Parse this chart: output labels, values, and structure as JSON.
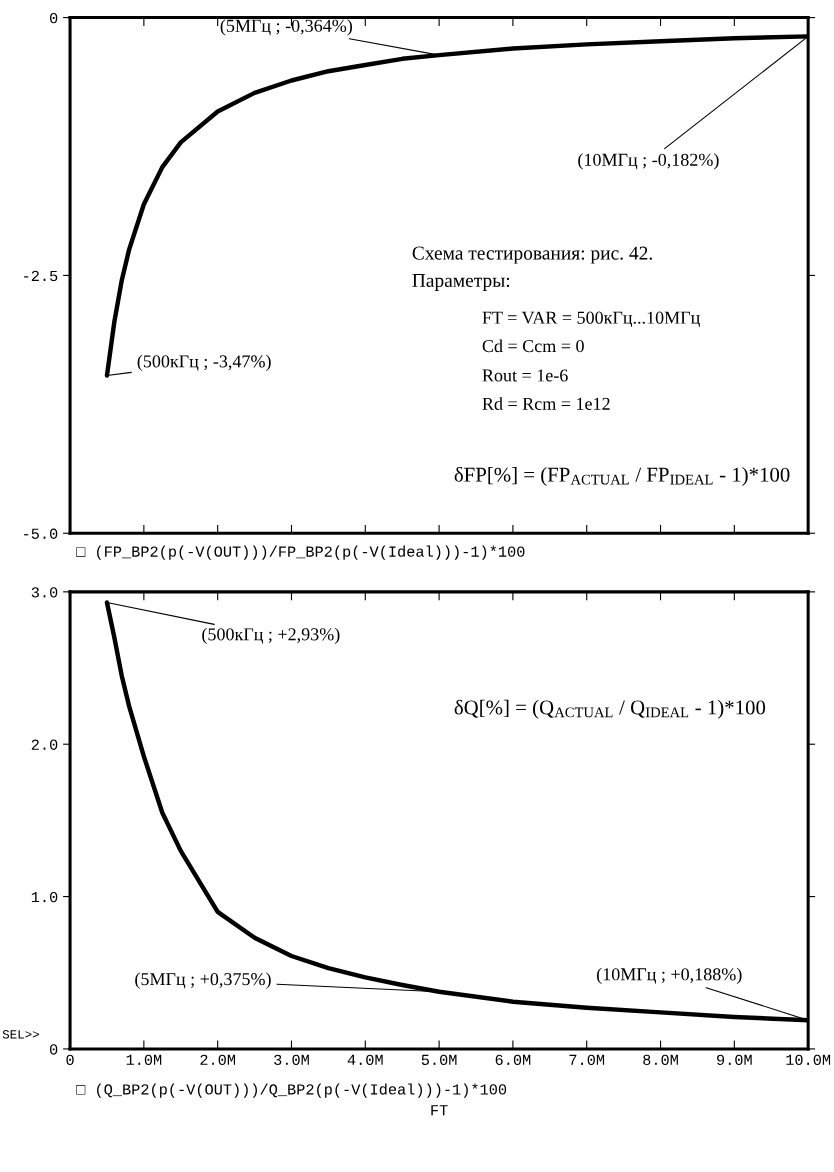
{
  "chart_data": [
    {
      "type": "line",
      "x": [
        500000,
        600000,
        700000,
        800000,
        1000000,
        1250000,
        1500000,
        2000000,
        2500000,
        3000000,
        3500000,
        4000000,
        4500000,
        5000000,
        6000000,
        7000000,
        8000000,
        9000000,
        10000000
      ],
      "series": [
        {
          "name": "□ (FP_BP2(p(-V(OUT)))/FP_BP2(p(-V(Ideal)))-1)*100",
          "color": "#000000",
          "values": [
            -3.47,
            -2.95,
            -2.55,
            -2.25,
            -1.81,
            -1.45,
            -1.21,
            -0.91,
            -0.73,
            -0.61,
            -0.52,
            -0.46,
            -0.4,
            -0.364,
            -0.3,
            -0.26,
            -0.23,
            -0.2,
            -0.182
          ]
        }
      ],
      "xlim": [
        0,
        10000000
      ],
      "ylim": [
        -5.0,
        0
      ],
      "yticks": [
        {
          "value": -5.0,
          "label": "-5.0"
        },
        {
          "value": -2.5,
          "label": "-2.5"
        },
        {
          "value": 0,
          "label": "0"
        }
      ],
      "tick_labels": "y",
      "grid": false,
      "legend": "bottom left",
      "line_style": "solid",
      "marker": "none",
      "annotations": [
        {
          "text": "(5МГц ; -0,364%)",
          "x": 5000000,
          "y": -0.364
        },
        {
          "text": "(10МГц ; -0,182%)",
          "x": 10000000,
          "y": -0.182
        },
        {
          "text": "(500кГц ; -3,47%)",
          "x": 500000,
          "y": -3.47
        },
        "Схема тестирования: рис. 42.",
        "Параметры:",
        "FT = VAR = 500кГц...10МГц",
        "Cd = Ccm = 0",
        "Rout = 1e-6",
        "Rd = Rcm = 1e12",
        "δFP[%] = (FP$_{ACTUAL}$ / FP$_{IDEAL}$ - 1)*100"
      ]
    },
    {
      "type": "line",
      "x": [
        500000,
        600000,
        700000,
        800000,
        1000000,
        1250000,
        1500000,
        2000000,
        2500000,
        3000000,
        3500000,
        4000000,
        4500000,
        5000000,
        6000000,
        7000000,
        8000000,
        9000000,
        10000000
      ],
      "series": [
        {
          "name": "□ (Q_BP2(p(-V(OUT)))/Q_BP2(p(-V(Ideal)))-1)*100",
          "color": "#000000",
          "values": [
            2.93,
            2.7,
            2.45,
            2.25,
            1.92,
            1.55,
            1.3,
            0.9,
            0.73,
            0.61,
            0.53,
            0.47,
            0.42,
            0.375,
            0.31,
            0.27,
            0.24,
            0.21,
            0.188
          ]
        }
      ],
      "xlim": [
        0,
        10000000
      ],
      "ylim": [
        0,
        3.0
      ],
      "xticks": [
        0,
        {
          "value": 1000000,
          "label": "1.0M"
        },
        {
          "value": 2000000,
          "label": "2.0M"
        },
        {
          "value": 3000000,
          "label": "3.0M"
        },
        {
          "value": 4000000,
          "label": "4.0M"
        },
        {
          "value": 5000000,
          "label": "5.0M"
        },
        {
          "value": 6000000,
          "label": "6.0M"
        },
        {
          "value": 7000000,
          "label": "7.0M"
        },
        {
          "value": 8000000,
          "label": "8.0M"
        },
        {
          "value": 9000000,
          "label": "9.0M"
        },
        {
          "value": 10000000,
          "label": "10.0M"
        }
      ],
      "yticks": [
        0,
        {
          "value": 1.0,
          "label": "1.0"
        },
        {
          "value": 2.0,
          "label": "2.0"
        },
        {
          "value": 3.0,
          "label": "3.0"
        }
      ],
      "xlabel": "FT",
      "grid": false,
      "legend": "bottom left",
      "line_style": "solid",
      "marker": "none",
      "annotations": [
        {
          "text": "(500кГц ; +2,93%)",
          "x": 500000,
          "y": 2.93
        },
        {
          "text": "(5МГц ; +0,375%)",
          "x": 5000000,
          "y": 0.375
        },
        {
          "text": "(10МГц ; +0,188%)",
          "x": 10000000,
          "y": 0.188
        },
        "δQ[%] = (Q$_{ACTUAL}$ / Q$_{IDEAL}$ - 1)*100",
        "SEL>>"
      ]
    }
  ]
}
